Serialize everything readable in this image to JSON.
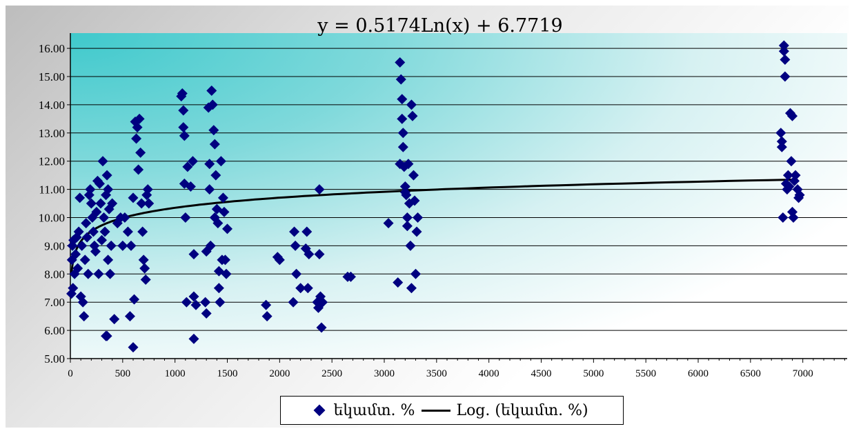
{
  "chart_data": {
    "type": "scatter",
    "title": "",
    "equation": "y = 0.5174Ln(x) + 6.7719",
    "xlabel": "",
    "ylabel": "",
    "xlim": [
      0,
      7000
    ],
    "ylim": [
      5,
      16.5
    ],
    "x_ticks": [
      0,
      500,
      1000,
      1500,
      2000,
      2500,
      3000,
      3500,
      4000,
      4500,
      5000,
      5500,
      6000,
      6500,
      7000
    ],
    "y_ticks": [
      "5.00",
      "6.00",
      "7.00",
      "8.00",
      "9.00",
      "10.00",
      "11.00",
      "12.00",
      "13.00",
      "14.00",
      "15.00",
      "16.00"
    ],
    "grid": "horizontal",
    "legend_position": "bottom",
    "colors": {
      "marker": "#000080",
      "trend": "#000000",
      "plot_bg": "#3fc9cc"
    },
    "series": [
      {
        "name": "եկամտ. %",
        "points": [
          [
            10,
            7.3
          ],
          [
            15,
            8.5
          ],
          [
            20,
            9.0
          ],
          [
            25,
            7.5
          ],
          [
            30,
            9.2
          ],
          [
            40,
            8.0
          ],
          [
            50,
            8.7
          ],
          [
            60,
            9.3
          ],
          [
            70,
            8.2
          ],
          [
            80,
            9.5
          ],
          [
            90,
            10.7
          ],
          [
            100,
            7.2
          ],
          [
            110,
            9.0
          ],
          [
            120,
            7.0
          ],
          [
            130,
            6.5
          ],
          [
            140,
            8.5
          ],
          [
            150,
            9.8
          ],
          [
            160,
            9.3
          ],
          [
            170,
            8.0
          ],
          [
            180,
            10.8
          ],
          [
            190,
            11.0
          ],
          [
            200,
            10.5
          ],
          [
            210,
            10.0
          ],
          [
            220,
            9.5
          ],
          [
            230,
            9.0
          ],
          [
            240,
            8.8
          ],
          [
            250,
            10.2
          ],
          [
            260,
            11.3
          ],
          [
            270,
            8.0
          ],
          [
            280,
            11.2
          ],
          [
            290,
            10.5
          ],
          [
            300,
            9.2
          ],
          [
            310,
            12.0
          ],
          [
            320,
            10.0
          ],
          [
            330,
            9.5
          ],
          [
            340,
            10.8
          ],
          [
            350,
            11.5
          ],
          [
            360,
            8.5
          ],
          [
            370,
            10.3
          ],
          [
            380,
            8.0
          ],
          [
            390,
            9.0
          ],
          [
            400,
            10.5
          ],
          [
            420,
            6.4
          ],
          [
            450,
            9.8
          ],
          [
            480,
            10.0
          ],
          [
            500,
            9.0
          ],
          [
            520,
            10.0
          ],
          [
            550,
            9.5
          ],
          [
            570,
            6.5
          ],
          [
            580,
            9.0
          ],
          [
            600,
            5.4
          ],
          [
            610,
            7.1
          ],
          [
            620,
            13.4
          ],
          [
            630,
            12.8
          ],
          [
            640,
            13.2
          ],
          [
            650,
            11.7
          ],
          [
            660,
            13.5
          ],
          [
            670,
            12.3
          ],
          [
            680,
            10.5
          ],
          [
            690,
            9.5
          ],
          [
            700,
            8.5
          ],
          [
            710,
            8.2
          ],
          [
            720,
            7.8
          ],
          [
            730,
            10.8
          ],
          [
            740,
            11.0
          ],
          [
            750,
            10.5
          ],
          [
            340,
            5.8
          ],
          [
            350,
            5.8
          ],
          [
            360,
            11.0
          ],
          [
            600,
            10.7
          ],
          [
            1060,
            14.3
          ],
          [
            1070,
            14.4
          ],
          [
            1080,
            13.8
          ],
          [
            1080,
            13.2
          ],
          [
            1090,
            12.9
          ],
          [
            1090,
            11.2
          ],
          [
            1100,
            10.0
          ],
          [
            1110,
            7.0
          ],
          [
            1120,
            11.8
          ],
          [
            1150,
            11.1
          ],
          [
            1170,
            12.0
          ],
          [
            1180,
            8.7
          ],
          [
            1180,
            7.2
          ],
          [
            1200,
            6.9
          ],
          [
            1180,
            5.7
          ],
          [
            1290,
            7.0
          ],
          [
            1300,
            8.8
          ],
          [
            1300,
            6.6
          ],
          [
            1320,
            13.9
          ],
          [
            1330,
            11.9
          ],
          [
            1340,
            9.0
          ],
          [
            1350,
            14.5
          ],
          [
            1360,
            14.0
          ],
          [
            1370,
            13.1
          ],
          [
            1380,
            12.6
          ],
          [
            1390,
            11.5
          ],
          [
            1400,
            10.3
          ],
          [
            1410,
            9.8
          ],
          [
            1420,
            7.5
          ],
          [
            1430,
            7.0
          ],
          [
            1440,
            12.0
          ],
          [
            1450,
            8.5
          ],
          [
            1460,
            10.7
          ],
          [
            1470,
            10.2
          ],
          [
            1480,
            8.5
          ],
          [
            1490,
            8.0
          ],
          [
            1500,
            9.6
          ],
          [
            1380,
            10.0
          ],
          [
            1420,
            8.1
          ],
          [
            1330,
            11.0
          ],
          [
            1870,
            6.9
          ],
          [
            1880,
            6.5
          ],
          [
            1980,
            8.6
          ],
          [
            2000,
            8.5
          ],
          [
            2130,
            7.0
          ],
          [
            2140,
            9.5
          ],
          [
            2150,
            9.0
          ],
          [
            2160,
            8.0
          ],
          [
            2200,
            7.5
          ],
          [
            2250,
            8.9
          ],
          [
            2260,
            9.5
          ],
          [
            2270,
            7.5
          ],
          [
            2280,
            8.7
          ],
          [
            2360,
            7.0
          ],
          [
            2370,
            6.8
          ],
          [
            2380,
            8.7
          ],
          [
            2390,
            7.2
          ],
          [
            2400,
            6.1
          ],
          [
            2410,
            7.0
          ],
          [
            2380,
            11.0
          ],
          [
            2650,
            7.9
          ],
          [
            2680,
            7.9
          ],
          [
            3040,
            9.8
          ],
          [
            3130,
            7.7
          ],
          [
            3150,
            15.5
          ],
          [
            3160,
            14.9
          ],
          [
            3170,
            14.2
          ],
          [
            3170,
            13.5
          ],
          [
            3180,
            13.0
          ],
          [
            3180,
            12.5
          ],
          [
            3190,
            11.8
          ],
          [
            3200,
            11.1
          ],
          [
            3210,
            10.8
          ],
          [
            3220,
            9.7
          ],
          [
            3230,
            11.9
          ],
          [
            3240,
            10.5
          ],
          [
            3250,
            9.0
          ],
          [
            3260,
            7.5
          ],
          [
            3260,
            14.0
          ],
          [
            3270,
            13.6
          ],
          [
            3280,
            11.5
          ],
          [
            3290,
            10.6
          ],
          [
            3300,
            8.0
          ],
          [
            3310,
            9.5
          ],
          [
            3320,
            10.0
          ],
          [
            3150,
            11.9
          ],
          [
            3200,
            10.9
          ],
          [
            3220,
            10.0
          ],
          [
            6790,
            13.0
          ],
          [
            6800,
            12.7
          ],
          [
            6800,
            12.5
          ],
          [
            6810,
            10.0
          ],
          [
            6820,
            16.1
          ],
          [
            6820,
            15.9
          ],
          [
            6830,
            15.6
          ],
          [
            6830,
            15.0
          ],
          [
            6840,
            11.2
          ],
          [
            6850,
            11.0
          ],
          [
            6860,
            11.5
          ],
          [
            6870,
            11.1
          ],
          [
            6880,
            13.7
          ],
          [
            6890,
            12.0
          ],
          [
            6900,
            13.6
          ],
          [
            6900,
            10.2
          ],
          [
            6910,
            10.0
          ],
          [
            6920,
            11.3
          ],
          [
            6930,
            11.5
          ],
          [
            6950,
            11.0
          ],
          [
            6960,
            10.7
          ],
          [
            6970,
            10.8
          ]
        ]
      },
      {
        "name": "Log. (եկամտ. %)",
        "trendline": {
          "kind": "log",
          "a": 0.5174,
          "b": 6.7719,
          "x_from": 10,
          "x_to": 6950
        }
      }
    ]
  },
  "legend": {
    "item1_label": "եկամտ. %",
    "item2_label": "Log. (եկամտ. %)"
  }
}
